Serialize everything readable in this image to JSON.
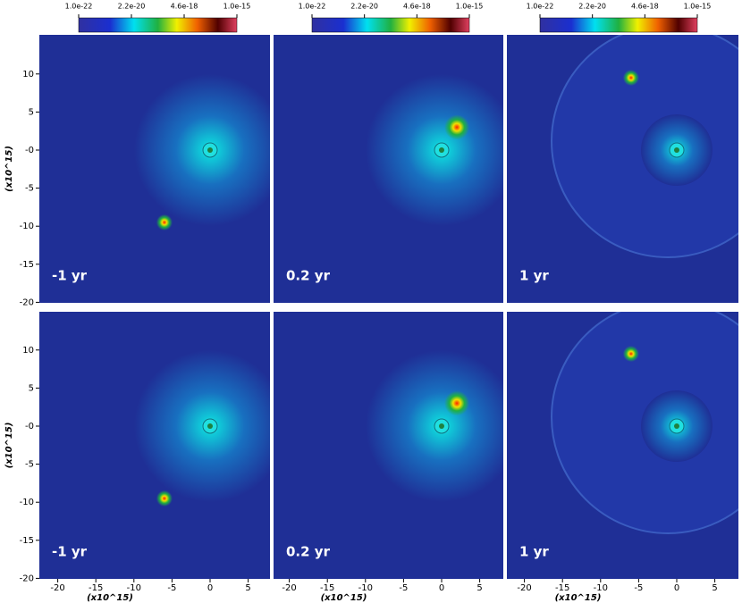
{
  "colorbar_ticks": [
    "1.0e-22",
    "2.2e-20",
    "4.6e-18",
    "1.0e-15"
  ],
  "y_axis": {
    "label": "(x10^15)",
    "ticks": [
      "10",
      "5",
      "-0",
      "-5",
      "-10",
      "-15",
      "-20"
    ]
  },
  "x_axis": {
    "label": "(x10^15)",
    "ticks": [
      "-20",
      "-15",
      "-10",
      "-5",
      "0",
      "5"
    ]
  },
  "panels": [
    {
      "label": "-1 yr"
    },
    {
      "label": "0.2 yr"
    },
    {
      "label": "1 yr"
    },
    {
      "label": "-1 yr"
    },
    {
      "label": "0.2 yr"
    },
    {
      "label": "1 yr"
    }
  ]
}
